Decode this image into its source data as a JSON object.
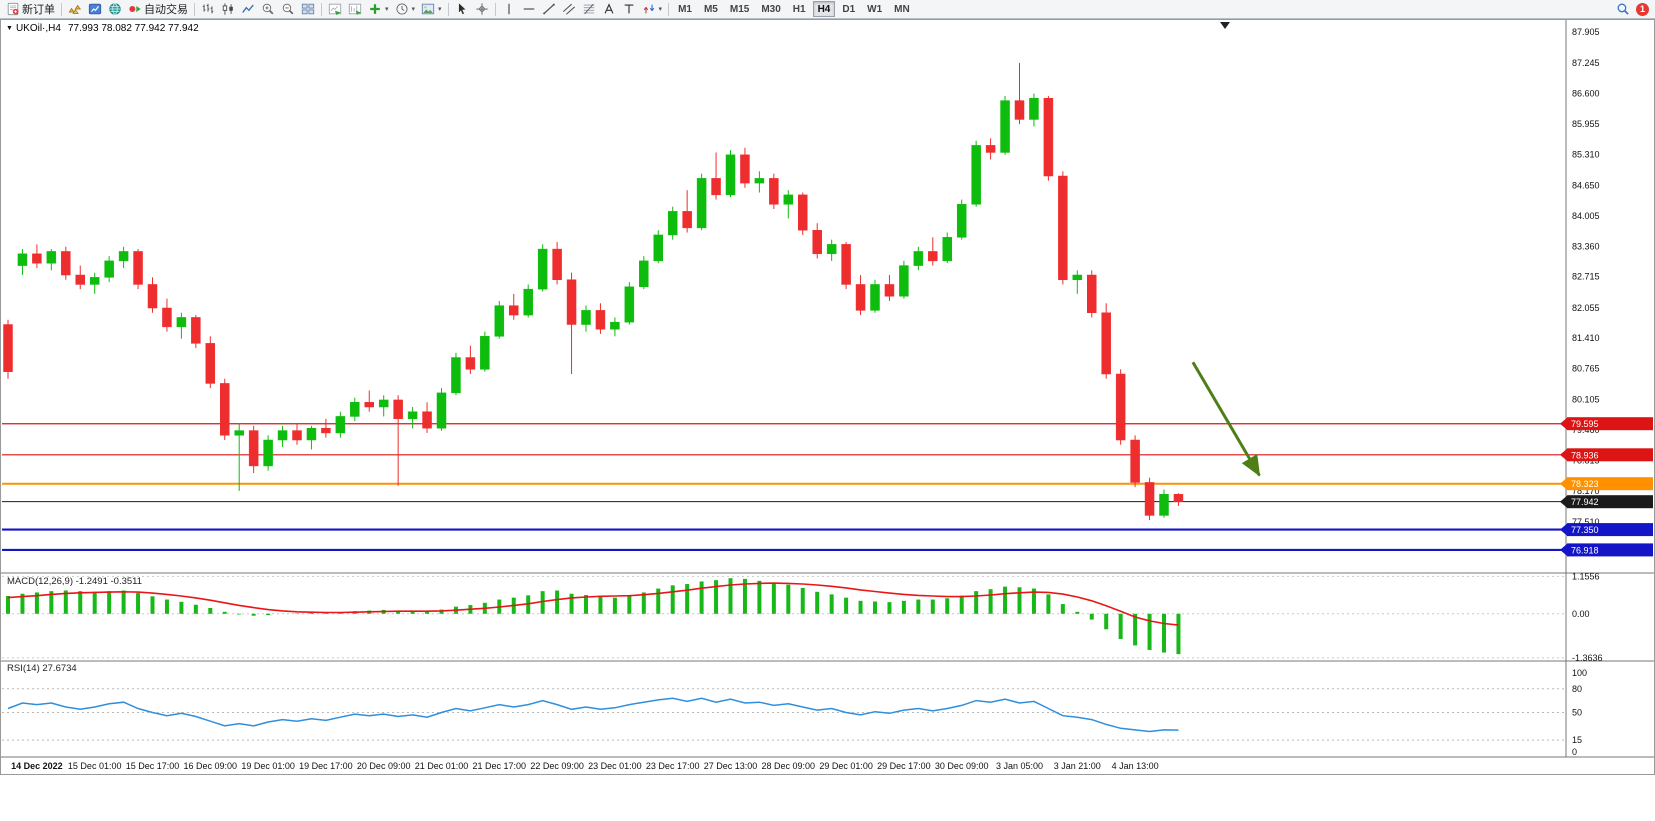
{
  "toolbar": {
    "timeframes": [
      "M1",
      "M5",
      "M15",
      "M30",
      "H1",
      "H4",
      "D1",
      "W1",
      "MN"
    ],
    "active_timeframe": "H4",
    "notification_count": "1",
    "buttons_left": [
      {
        "name": "new-order",
        "icon": "new-order-icon",
        "label": "新订单"
      },
      {
        "sep": true
      },
      {
        "name": "market-watch",
        "icon": "gold-bars-icon"
      },
      {
        "name": "data-window",
        "icon": "chart-profile-icon"
      },
      {
        "name": "community",
        "icon": "globe-icon"
      },
      {
        "name": "auto-trading",
        "icon": "auto-trading-icon",
        "label": "自动交易"
      },
      {
        "sep": true
      },
      {
        "name": "bar-chart-mode",
        "icon": "ohlc-bars-icon"
      },
      {
        "name": "candlestick-mode",
        "icon": "candlestick-icon"
      },
      {
        "name": "line-chart-mode",
        "icon": "line-chart-icon"
      },
      {
        "name": "zoom-in",
        "icon": "zoom-in-icon"
      },
      {
        "name": "zoom-out",
        "icon": "zoom-out-icon"
      },
      {
        "name": "tile-windows",
        "icon": "tile-windows-icon"
      },
      {
        "sep": true
      },
      {
        "name": "auto-scroll",
        "icon": "auto-scroll-icon"
      },
      {
        "name": "chart-shift",
        "icon": "chart-shift-icon"
      },
      {
        "name": "indicators",
        "icon": "add-indicator-icon",
        "dropdown": true
      },
      {
        "name": "periods",
        "icon": "clock-icon",
        "dropdown": true
      },
      {
        "name": "templates",
        "icon": "template-icon",
        "dropdown": true
      },
      {
        "sep": true
      },
      {
        "name": "cursor",
        "icon": "cursor-icon"
      },
      {
        "name": "crosshair",
        "icon": "crosshair-icon"
      },
      {
        "sep": true
      },
      {
        "name": "vertical-line",
        "icon": "vertical-line-icon"
      },
      {
        "name": "horizontal-line",
        "icon": "horizontal-line-icon"
      },
      {
        "name": "trendline",
        "icon": "trendline-icon"
      },
      {
        "name": "equidistant-channel",
        "icon": "channel-icon"
      },
      {
        "name": "fibonacci",
        "icon": "fibonacci-icon"
      },
      {
        "name": "text",
        "icon": "text-a-icon"
      },
      {
        "name": "text-label",
        "icon": "text-t-icon"
      },
      {
        "name": "arrows-tool",
        "icon": "arrow-marks-icon",
        "dropdown": true
      }
    ],
    "buttons_right": [
      {
        "name": "search",
        "icon": "search-icon"
      },
      {
        "name": "notifications",
        "icon": "notification-badge",
        "label": "1"
      }
    ]
  },
  "chart_header": {
    "symbol": "UKOil·,H4",
    "ohlc": "77.993 78.082 77.942 77.942"
  },
  "chart_data": {
    "type": "candlestick",
    "symbol": "UKOil",
    "timeframe": "H4",
    "ohlc_display": {
      "open": "77.993",
      "high": "78.082",
      "low": "77.942",
      "close": "77.942"
    },
    "y_ticks": [
      "87.905",
      "87.245",
      "86.600",
      "85.955",
      "85.310",
      "84.650",
      "84.005",
      "83.360",
      "82.715",
      "82.055",
      "81.410",
      "80.765",
      "80.105",
      "79.460",
      "78.815",
      "78.170",
      "77.510"
    ],
    "x_labels": [
      "14 Dec 2022",
      "15 Dec 01:00",
      "15 Dec 17:00",
      "16 Dec 09:00",
      "19 Dec 01:00",
      "19 Dec 17:00",
      "20 Dec 09:00",
      "21 Dec 01:00",
      "21 Dec 17:00",
      "22 Dec 09:00",
      "23 Dec 01:00",
      "23 Dec 17:00",
      "27 Dec 13:00",
      "28 Dec 09:00",
      "29 Dec 01:00",
      "29 Dec 17:00",
      "30 Dec 09:00",
      "3 Jan 05:00",
      "3 Jan 21:00",
      "4 Jan 13:00"
    ],
    "x_label_start_index": 2,
    "x_label_step": 4,
    "candles": [
      [
        81.7,
        81.8,
        80.55,
        80.7
      ],
      [
        82.95,
        83.3,
        82.75,
        83.2
      ],
      [
        83.2,
        83.4,
        82.9,
        83.0
      ],
      [
        83.0,
        83.3,
        82.85,
        83.25
      ],
      [
        83.25,
        83.35,
        82.65,
        82.75
      ],
      [
        82.75,
        82.95,
        82.45,
        82.55
      ],
      [
        82.55,
        82.8,
        82.35,
        82.7
      ],
      [
        82.7,
        83.15,
        82.6,
        83.05
      ],
      [
        83.05,
        83.35,
        82.9,
        83.25
      ],
      [
        83.25,
        83.3,
        82.45,
        82.55
      ],
      [
        82.55,
        82.7,
        81.95,
        82.05
      ],
      [
        82.05,
        82.25,
        81.55,
        81.65
      ],
      [
        81.65,
        81.95,
        81.4,
        81.85
      ],
      [
        81.85,
        81.9,
        81.2,
        81.3
      ],
      [
        81.3,
        81.45,
        80.35,
        80.45
      ],
      [
        80.45,
        80.55,
        79.25,
        79.35
      ],
      [
        79.35,
        79.6,
        78.17,
        79.45
      ],
      [
        79.45,
        79.55,
        78.55,
        78.7
      ],
      [
        78.7,
        79.35,
        78.6,
        79.25
      ],
      [
        79.25,
        79.55,
        79.1,
        79.45
      ],
      [
        79.45,
        79.6,
        79.15,
        79.25
      ],
      [
        79.25,
        79.55,
        79.05,
        79.5
      ],
      [
        79.5,
        79.7,
        79.3,
        79.4
      ],
      [
        79.4,
        79.85,
        79.3,
        79.75
      ],
      [
        79.75,
        80.15,
        79.65,
        80.05
      ],
      [
        80.05,
        80.3,
        79.85,
        79.95
      ],
      [
        79.95,
        80.2,
        79.75,
        80.1
      ],
      [
        80.1,
        80.2,
        78.28,
        79.7
      ],
      [
        79.7,
        79.95,
        79.5,
        79.85
      ],
      [
        79.85,
        80.05,
        79.4,
        79.5
      ],
      [
        79.5,
        80.35,
        79.45,
        80.25
      ],
      [
        80.25,
        81.1,
        80.2,
        81.0
      ],
      [
        81.0,
        81.25,
        80.65,
        80.75
      ],
      [
        80.75,
        81.55,
        80.7,
        81.45
      ],
      [
        81.45,
        82.2,
        81.4,
        82.1
      ],
      [
        82.1,
        82.35,
        81.8,
        81.9
      ],
      [
        81.9,
        82.55,
        81.85,
        82.45
      ],
      [
        82.45,
        83.4,
        82.4,
        83.3
      ],
      [
        83.3,
        83.45,
        82.55,
        82.65
      ],
      [
        82.65,
        82.8,
        80.65,
        81.7
      ],
      [
        81.7,
        82.1,
        81.55,
        82.0
      ],
      [
        82.0,
        82.15,
        81.5,
        81.6
      ],
      [
        81.6,
        81.85,
        81.45,
        81.75
      ],
      [
        81.75,
        82.6,
        81.7,
        82.5
      ],
      [
        82.5,
        83.15,
        82.45,
        83.05
      ],
      [
        83.05,
        83.7,
        83.0,
        83.6
      ],
      [
        83.6,
        84.2,
        83.5,
        84.1
      ],
      [
        84.1,
        84.55,
        83.65,
        83.75
      ],
      [
        83.75,
        84.9,
        83.7,
        84.8
      ],
      [
        84.8,
        85.35,
        84.35,
        84.45
      ],
      [
        84.45,
        85.4,
        84.4,
        85.3
      ],
      [
        85.3,
        85.45,
        84.6,
        84.7
      ],
      [
        84.7,
        84.95,
        84.5,
        84.8
      ],
      [
        84.8,
        84.9,
        84.15,
        84.25
      ],
      [
        84.25,
        84.55,
        83.95,
        84.45
      ],
      [
        84.45,
        84.5,
        83.6,
        83.7
      ],
      [
        83.7,
        83.85,
        83.1,
        83.2
      ],
      [
        83.2,
        83.5,
        83.05,
        83.4
      ],
      [
        83.4,
        83.45,
        82.45,
        82.55
      ],
      [
        82.55,
        82.75,
        81.9,
        82.0
      ],
      [
        82.0,
        82.65,
        81.95,
        82.55
      ],
      [
        82.55,
        82.75,
        82.2,
        82.3
      ],
      [
        82.3,
        83.05,
        82.25,
        82.95
      ],
      [
        82.95,
        83.35,
        82.85,
        83.25
      ],
      [
        83.25,
        83.55,
        82.95,
        83.05
      ],
      [
        83.05,
        83.65,
        83.0,
        83.55
      ],
      [
        83.55,
        84.35,
        83.5,
        84.25
      ],
      [
        84.25,
        85.6,
        84.2,
        85.5
      ],
      [
        85.5,
        85.65,
        85.2,
        85.35
      ],
      [
        85.35,
        86.55,
        85.3,
        86.45
      ],
      [
        86.45,
        87.25,
        85.95,
        86.05
      ],
      [
        86.05,
        86.6,
        85.9,
        86.5
      ],
      [
        86.5,
        86.55,
        84.75,
        84.85
      ],
      [
        84.85,
        84.95,
        82.55,
        82.65
      ],
      [
        82.65,
        82.85,
        82.35,
        82.75
      ],
      [
        82.75,
        82.85,
        81.85,
        81.95
      ],
      [
        81.95,
        82.15,
        80.55,
        80.65
      ],
      [
        80.65,
        80.75,
        79.15,
        79.25
      ],
      [
        79.25,
        79.35,
        78.25,
        78.35
      ],
      [
        78.35,
        78.45,
        77.55,
        77.65
      ],
      [
        77.65,
        78.2,
        77.6,
        78.1
      ],
      [
        78.1,
        78.12,
        77.85,
        77.942
      ]
    ],
    "h_lines": [
      {
        "price": 79.595,
        "label": "79.595",
        "color": "#dc1414",
        "width": 1.2
      },
      {
        "price": 78.936,
        "label": "78.936",
        "color": "#dc1414",
        "width": 1.2
      },
      {
        "price": 78.323,
        "label": "78.323",
        "color": "#ff9100",
        "width": 2
      },
      {
        "price": 77.942,
        "label": "77.942",
        "color": "#1b1b1b",
        "width": 1,
        "is_current_price": true
      },
      {
        "price": 77.35,
        "label": "77.350",
        "color": "#1515c8",
        "width": 2.2
      },
      {
        "price": 76.918,
        "label": "76.918",
        "color": "#1515c8",
        "width": 2.2
      }
    ],
    "annotation_arrow": {
      "from_bar": 82,
      "from_price": 80.9,
      "to_bar": 86.6,
      "to_price": 78.5,
      "color": "#4e7f17"
    },
    "macd": {
      "label": "MACD(12,26,9) -1.2491 -0.3511",
      "params": "12,26,9",
      "main_value": -1.2491,
      "signal_value": -0.3511,
      "y_ticks": [
        "1.1556",
        "0.00",
        "-1.3636"
      ],
      "hist_color": "#17b817",
      "signal_color": "#e81717",
      "histogram": [
        0.55,
        0.62,
        0.66,
        0.7,
        0.72,
        0.7,
        0.68,
        0.7,
        0.72,
        0.64,
        0.54,
        0.44,
        0.37,
        0.28,
        0.18,
        0.06,
        -0.02,
        -0.06,
        -0.04,
        0.0,
        0.01,
        0.03,
        0.03,
        0.05,
        0.08,
        0.1,
        0.12,
        0.1,
        0.1,
        0.08,
        0.13,
        0.22,
        0.27,
        0.34,
        0.44,
        0.5,
        0.57,
        0.7,
        0.72,
        0.62,
        0.58,
        0.52,
        0.5,
        0.56,
        0.66,
        0.78,
        0.88,
        0.92,
        1.0,
        1.04,
        1.1,
        1.08,
        1.02,
        0.95,
        0.9,
        0.8,
        0.68,
        0.6,
        0.5,
        0.4,
        0.38,
        0.36,
        0.4,
        0.44,
        0.44,
        0.48,
        0.56,
        0.7,
        0.76,
        0.84,
        0.82,
        0.78,
        0.6,
        0.3,
        0.06,
        -0.18,
        -0.48,
        -0.78,
        -0.98,
        -1.12,
        -1.2,
        -1.2491
      ],
      "signal": [
        0.5,
        0.53,
        0.56,
        0.6,
        0.63,
        0.65,
        0.66,
        0.67,
        0.68,
        0.67,
        0.64,
        0.6,
        0.55,
        0.49,
        0.42,
        0.34,
        0.26,
        0.19,
        0.13,
        0.09,
        0.06,
        0.05,
        0.04,
        0.04,
        0.05,
        0.06,
        0.07,
        0.08,
        0.08,
        0.08,
        0.09,
        0.11,
        0.14,
        0.17,
        0.21,
        0.26,
        0.31,
        0.38,
        0.44,
        0.49,
        0.52,
        0.54,
        0.55,
        0.56,
        0.59,
        0.63,
        0.68,
        0.73,
        0.79,
        0.84,
        0.89,
        0.92,
        0.94,
        0.95,
        0.94,
        0.92,
        0.89,
        0.85,
        0.8,
        0.74,
        0.69,
        0.64,
        0.6,
        0.57,
        0.55,
        0.53,
        0.53,
        0.55,
        0.58,
        0.62,
        0.65,
        0.67,
        0.66,
        0.61,
        0.52,
        0.4,
        0.25,
        0.08,
        -0.1,
        -0.22,
        -0.3,
        -0.3511
      ]
    },
    "rsi": {
      "label": "RSI(14) 27.6734",
      "period": 14,
      "value": 27.6734,
      "y_ticks": [
        "100",
        "80",
        "50",
        "15",
        "0"
      ],
      "levels": [
        80,
        50,
        15
      ],
      "line_color": "#2f8fdd",
      "values": [
        55,
        62,
        60,
        62,
        57,
        54,
        57,
        61,
        63,
        55,
        50,
        46,
        49,
        45,
        39,
        33,
        36,
        33,
        38,
        41,
        39,
        42,
        40,
        44,
        48,
        46,
        48,
        45,
        47,
        44,
        50,
        55,
        52,
        56,
        60,
        57,
        60,
        65,
        60,
        54,
        57,
        54,
        56,
        60,
        63,
        66,
        68,
        64,
        68,
        63,
        67,
        62,
        63,
        59,
        61,
        57,
        53,
        55,
        50,
        47,
        51,
        49,
        53,
        55,
        52,
        55,
        59,
        65,
        63,
        67,
        62,
        64,
        55,
        46,
        44,
        41,
        35,
        30,
        28,
        26,
        28,
        27.67
      ]
    },
    "colors": {
      "up": "#0ebc0e",
      "down": "#ee2e2e",
      "background": "#ffffff",
      "axis_text": "#111111"
    }
  }
}
